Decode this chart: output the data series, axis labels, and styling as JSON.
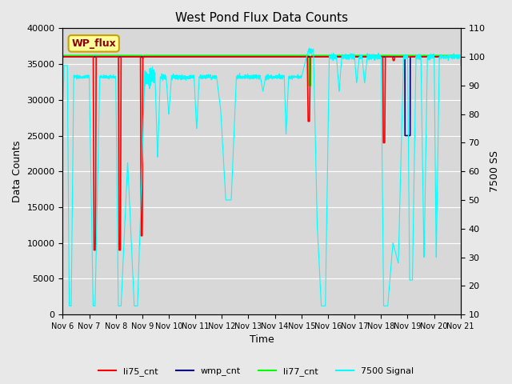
{
  "title": "West Pond Flux Data Counts",
  "xlabel": "Time",
  "ylabel_left": "Data Counts",
  "ylabel_right": "7500 SS",
  "ylim_left": [
    0,
    40000
  ],
  "ylim_right": [
    10,
    110
  ],
  "background_color": "#e8e8e8",
  "plot_bg_color": "#d8d8d8",
  "xtick_labels": [
    "Nov 6",
    "Nov 7",
    "Nov 8",
    "Nov 9",
    "Nov 10",
    "Nov 11",
    "Nov 12",
    "Nov 13",
    "Nov 14",
    "Nov 15",
    "Nov 16",
    "Nov 17",
    "Nov 18",
    "Nov 19",
    "Nov 20",
    "Nov 21"
  ],
  "legend_labels": [
    "li75_cnt",
    "wmp_cnt",
    "li77_cnt",
    "7500 Signal"
  ],
  "wp_flux_label": "WP_flux",
  "wp_flux_bg": "#ffff99",
  "wp_flux_border": "#c8a000",
  "figsize": [
    6.4,
    4.8
  ],
  "dpi": 100
}
